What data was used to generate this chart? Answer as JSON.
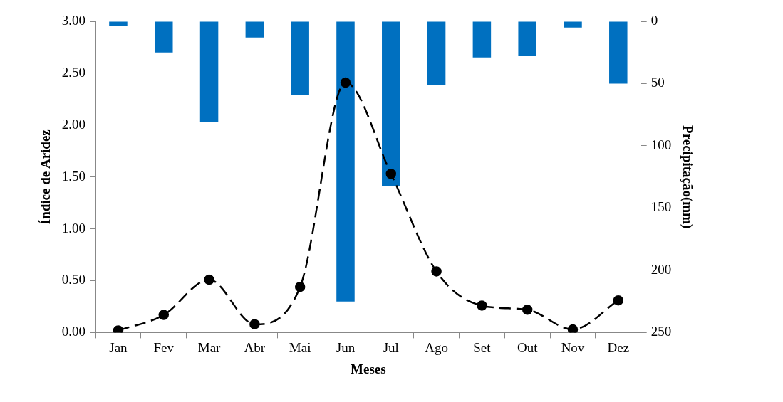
{
  "chart_data": {
    "type": "bar",
    "xlabel": "Meses",
    "ylabel": "Índice de Aridez",
    "y2label": "Precipitação(mm)",
    "categories": [
      "Jan",
      "Fev",
      "Mar",
      "Abr",
      "Mai",
      "Jun",
      "Jul",
      "Ago",
      "Set",
      "Out",
      "Nov",
      "Dez"
    ],
    "series": [
      {
        "axis": "y2",
        "color": "#0070c0",
        "values": [
          4,
          25,
          81,
          13,
          59,
          225,
          132,
          51,
          29,
          28,
          5,
          50
        ]
      },
      {
        "type": "line",
        "color": "#000000",
        "values": [
          0.02,
          0.17,
          0.51,
          0.08,
          0.44,
          2.41,
          1.53,
          0.59,
          0.26,
          0.22,
          0.03,
          0.31
        ]
      }
    ],
    "ylim": [
      0,
      3
    ],
    "yticks": [
      {
        "value": 0,
        "label": "0.00"
      },
      {
        "value": 0.5,
        "label": "0.50"
      },
      {
        "value": 1,
        "label": "1.00"
      },
      {
        "value": 1.5,
        "label": "1.50"
      },
      {
        "value": 2,
        "label": "2.00"
      },
      {
        "value": 2.5,
        "label": "2.50"
      },
      {
        "value": 3,
        "label": "3.00"
      }
    ],
    "y2lim": [
      250,
      0
    ],
    "y2ticks": [
      0,
      50,
      100,
      150,
      200,
      250
    ],
    "grid": false,
    "legend": false,
    "marker": "circle",
    "line_style": "dashed"
  }
}
